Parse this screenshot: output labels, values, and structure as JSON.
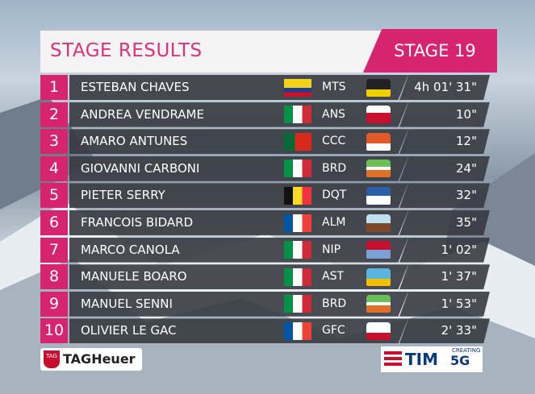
{
  "header": {
    "title": "STAGE RESULTS",
    "stage": "STAGE 19"
  },
  "results": [
    {
      "rank": 1,
      "name": "ESTEBAN CHAVES",
      "team": "MTS",
      "time": "4h 01' 31\""
    },
    {
      "rank": 2,
      "name": "ANDREA VENDRAME",
      "team": "ANS",
      "time": "10\""
    },
    {
      "rank": 3,
      "name": "AMARO ANTUNES",
      "team": "CCC",
      "time": "12\""
    },
    {
      "rank": 4,
      "name": "GIOVANNI CARBONI",
      "team": "BRD",
      "time": "24\""
    },
    {
      "rank": 5,
      "name": "PIETER SERRY",
      "team": "DQT",
      "time": "32\""
    },
    {
      "rank": 6,
      "name": "FRANCOIS BIDARD",
      "team": "ALM",
      "time": "35\""
    },
    {
      "rank": 7,
      "name": "MARCO CANOLA",
      "team": "NIP",
      "time": "1' 02\""
    },
    {
      "rank": 8,
      "name": "MANUELE BOARO",
      "team": "AST",
      "time": "1' 37\""
    },
    {
      "rank": 9,
      "name": "MANUEL SENNI",
      "team": "BRD",
      "time": "1' 53\""
    },
    {
      "rank": 10,
      "name": "OLIVIER LE GAC",
      "team": "GFC",
      "time": "2' 33\""
    }
  ],
  "sponsors": {
    "left_badge": "TAG",
    "left": "TAGHeuer",
    "right": "TIM",
    "right_tag": "CREATING",
    "right_5g": "5G"
  }
}
